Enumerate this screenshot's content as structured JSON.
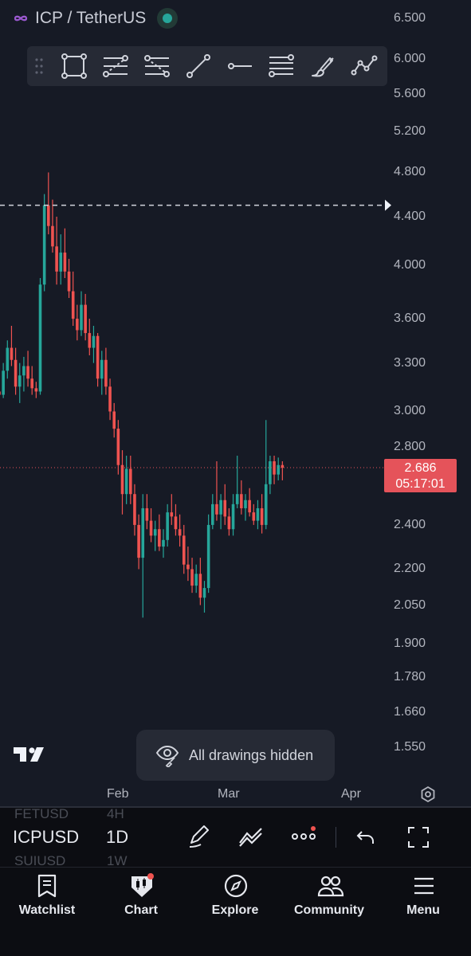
{
  "header": {
    "pair_title": "ICP / TetherUS",
    "status_color": "#26a69a",
    "logo_icon": "infinity-icon"
  },
  "drawing_toolbar": {
    "tools": [
      "drag-handle-icon",
      "rectangle-icon",
      "fib-retracement-icon",
      "fib-extension-icon",
      "trend-line-icon",
      "horizontal-ray-icon",
      "parallel-channel-icon",
      "brush-icon",
      "path-icon"
    ]
  },
  "price_tag": {
    "price": "2.686",
    "countdown": "05:17:01",
    "color": "#e5535a"
  },
  "toast": {
    "message": "All drawings hidden",
    "icon": "eye-hidden-icon"
  },
  "bottom_bar": {
    "symbol": "ICPUSD",
    "symbol_above": "FETUSD",
    "symbol_below": "SUIUSD",
    "timeframe": "1D",
    "timeframe_above": "4H",
    "timeframe_below": "1W",
    "tools": [
      "drawing-pen-icon",
      "indicators-icon",
      "more-icon",
      "undo-icon",
      "fullscreen-icon"
    ]
  },
  "nav": {
    "items": [
      {
        "label": "Watchlist",
        "icon": "watchlist-icon"
      },
      {
        "label": "Chart",
        "icon": "chart-icon"
      },
      {
        "label": "Explore",
        "icon": "compass-icon"
      },
      {
        "label": "Community",
        "icon": "community-icon"
      },
      {
        "label": "Menu",
        "icon": "menu-icon"
      }
    ]
  },
  "colors": {
    "up": "#26a69a",
    "down": "#ef5350",
    "background": "#161a25"
  },
  "chart_data": {
    "type": "candlestick",
    "title": "ICP / TetherUS",
    "y_scale": "log",
    "ylim": [
      1.47,
      6.7
    ],
    "y_ticks": [
      "6.500",
      "6.000",
      "5.600",
      "5.200",
      "4.800",
      "4.400",
      "4.000",
      "3.600",
      "3.300",
      "3.000",
      "2.800",
      "2.400",
      "2.200",
      "2.050",
      "1.900",
      "1.780",
      "1.660",
      "1.550"
    ],
    "x_ticks": [
      "Feb",
      "Mar",
      "Apr"
    ],
    "last_price": 2.686,
    "alert_line": 4.5,
    "candles": [
      [
        3.12,
        3.2,
        3.05,
        3.1
      ],
      [
        3.1,
        3.3,
        3.08,
        3.25
      ],
      [
        3.25,
        3.45,
        3.2,
        3.4
      ],
      [
        3.4,
        3.55,
        3.28,
        3.32
      ],
      [
        3.32,
        3.4,
        3.1,
        3.15
      ],
      [
        3.15,
        3.3,
        3.05,
        3.22
      ],
      [
        3.22,
        3.34,
        3.12,
        3.28
      ],
      [
        3.28,
        3.38,
        3.15,
        3.2
      ],
      [
        3.2,
        3.28,
        3.1,
        3.14
      ],
      [
        3.14,
        3.18,
        3.08,
        3.12
      ],
      [
        3.12,
        3.9,
        3.1,
        3.85
      ],
      [
        3.85,
        4.6,
        3.8,
        4.5
      ],
      [
        4.5,
        4.8,
        4.25,
        4.32
      ],
      [
        4.32,
        4.55,
        4.1,
        4.15
      ],
      [
        4.15,
        4.4,
        3.85,
        3.95
      ],
      [
        3.95,
        4.25,
        3.85,
        4.1
      ],
      [
        4.1,
        4.3,
        3.9,
        3.95
      ],
      [
        3.95,
        4.05,
        3.75,
        3.8
      ],
      [
        3.8,
        3.95,
        3.55,
        3.6
      ],
      [
        3.6,
        3.7,
        3.45,
        3.52
      ],
      [
        3.52,
        3.8,
        3.48,
        3.7
      ],
      [
        3.7,
        3.78,
        3.45,
        3.5
      ],
      [
        3.5,
        3.6,
        3.35,
        3.4
      ],
      [
        3.4,
        3.55,
        3.3,
        3.48
      ],
      [
        3.48,
        3.5,
        3.15,
        3.2
      ],
      [
        3.2,
        3.38,
        3.1,
        3.32
      ],
      [
        3.32,
        3.4,
        3.1,
        3.15
      ],
      [
        3.15,
        3.2,
        2.95,
        3.0
      ],
      [
        3.0,
        3.05,
        2.85,
        2.9
      ],
      [
        2.9,
        2.95,
        2.65,
        2.7
      ],
      [
        2.7,
        2.78,
        2.45,
        2.55
      ],
      [
        2.55,
        2.75,
        2.5,
        2.68
      ],
      [
        2.68,
        2.75,
        2.5,
        2.55
      ],
      [
        2.55,
        2.6,
        2.35,
        2.4
      ],
      [
        2.4,
        2.45,
        2.2,
        2.25
      ],
      [
        2.25,
        2.55,
        2.0,
        2.48
      ],
      [
        2.48,
        2.55,
        2.38,
        2.42
      ],
      [
        2.42,
        2.48,
        2.32,
        2.35
      ],
      [
        2.35,
        2.42,
        2.28,
        2.38
      ],
      [
        2.38,
        2.45,
        2.28,
        2.3
      ],
      [
        2.3,
        2.38,
        2.25,
        2.33
      ],
      [
        2.33,
        2.5,
        2.3,
        2.46
      ],
      [
        2.46,
        2.55,
        2.4,
        2.44
      ],
      [
        2.44,
        2.5,
        2.35,
        2.38
      ],
      [
        2.38,
        2.45,
        2.3,
        2.35
      ],
      [
        2.35,
        2.4,
        2.18,
        2.22
      ],
      [
        2.22,
        2.3,
        2.15,
        2.2
      ],
      [
        2.2,
        2.25,
        2.1,
        2.13
      ],
      [
        2.13,
        2.22,
        2.1,
        2.18
      ],
      [
        2.18,
        2.25,
        2.05,
        2.08
      ],
      [
        2.08,
        2.15,
        2.02,
        2.12
      ],
      [
        2.12,
        2.45,
        2.1,
        2.4
      ],
      [
        2.4,
        2.55,
        2.38,
        2.5
      ],
      [
        2.5,
        2.72,
        2.42,
        2.45
      ],
      [
        2.45,
        2.55,
        2.38,
        2.52
      ],
      [
        2.52,
        2.6,
        2.4,
        2.44
      ],
      [
        2.44,
        2.48,
        2.35,
        2.38
      ],
      [
        2.38,
        2.55,
        2.35,
        2.5
      ],
      [
        2.5,
        2.75,
        2.48,
        2.55
      ],
      [
        2.55,
        2.62,
        2.45,
        2.48
      ],
      [
        2.48,
        2.55,
        2.42,
        2.52
      ],
      [
        2.52,
        2.58,
        2.44,
        2.46
      ],
      [
        2.46,
        2.5,
        2.4,
        2.42
      ],
      [
        2.42,
        2.52,
        2.38,
        2.48
      ],
      [
        2.48,
        2.55,
        2.36,
        2.4
      ],
      [
        2.4,
        2.95,
        2.38,
        2.6
      ],
      [
        2.6,
        2.75,
        2.55,
        2.72
      ],
      [
        2.72,
        2.75,
        2.6,
        2.65
      ],
      [
        2.65,
        2.74,
        2.62,
        2.7
      ],
      [
        2.7,
        2.72,
        2.62,
        2.686
      ]
    ]
  }
}
